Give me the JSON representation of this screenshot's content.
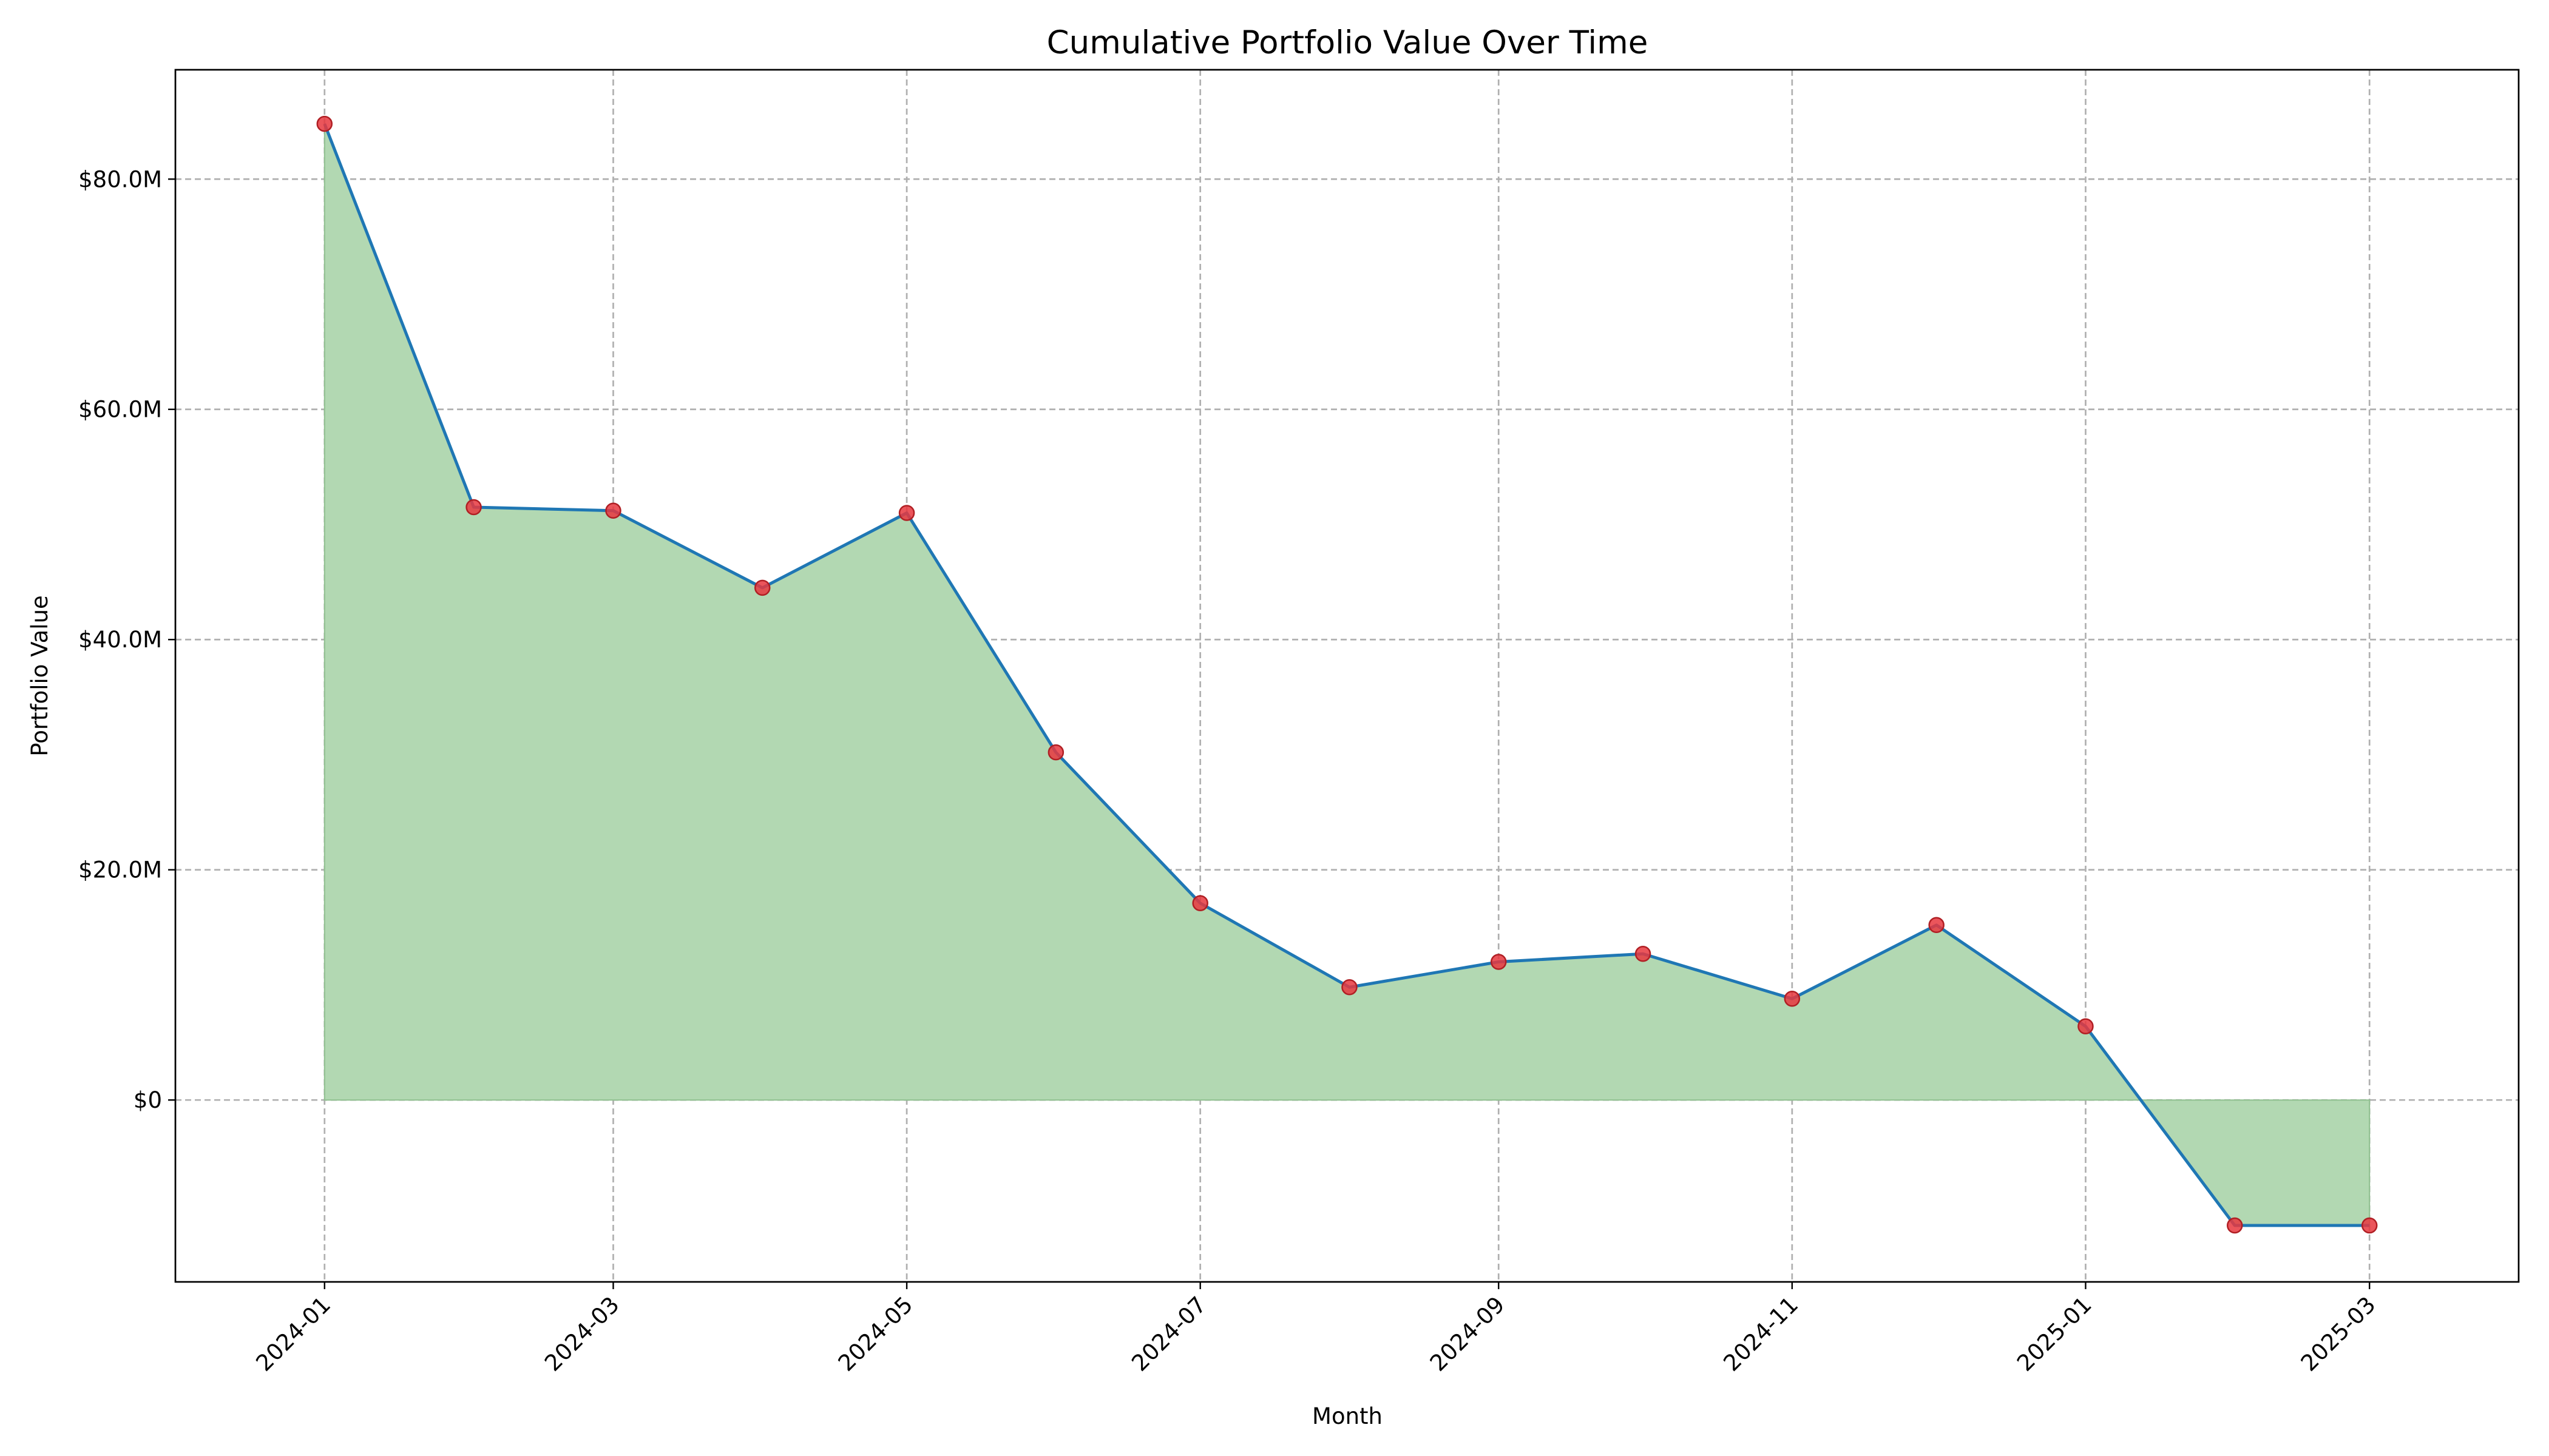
{
  "chart_data": {
    "type": "area",
    "title": "Cumulative Portfolio Value Over Time",
    "xlabel": "Month",
    "ylabel": "Portfolio Value",
    "x": [
      "2024-01-01",
      "2024-02-01",
      "2024-03-01",
      "2024-04-01",
      "2024-05-01",
      "2024-06-01",
      "2024-07-01",
      "2024-08-01",
      "2024-09-01",
      "2024-10-01",
      "2024-11-01",
      "2024-12-01",
      "2025-01-01",
      "2025-02-01",
      "2025-03-01"
    ],
    "series": [
      {
        "values": [
          84.8,
          51.5,
          51.2,
          44.5,
          51.0,
          30.2,
          17.1,
          9.8,
          12.0,
          12.7,
          8.8,
          15.2,
          6.4,
          -10.9,
          -10.9
        ]
      }
    ],
    "y_unit": "$M",
    "ylim": [
      -15.8,
      89.5
    ],
    "xlim": [
      "2023-12-01",
      "2025-04-01"
    ],
    "x_ticks": [
      "2024-01",
      "2024-03",
      "2024-05",
      "2024-07",
      "2024-09",
      "2024-11",
      "2025-01",
      "2025-03"
    ],
    "y_ticks": [
      0,
      20,
      40,
      60,
      80
    ],
    "y_tick_labels": [
      "$0",
      "$20.0M",
      "$40.0M",
      "$60.0M",
      "$80.0M"
    ],
    "grid": true,
    "colors": {
      "line": "#1f77b4",
      "fill": "#b2d8b2",
      "fill_edge": "#8fbf8f",
      "marker": "#e8373e",
      "marker_edge": "#b01f24"
    }
  }
}
